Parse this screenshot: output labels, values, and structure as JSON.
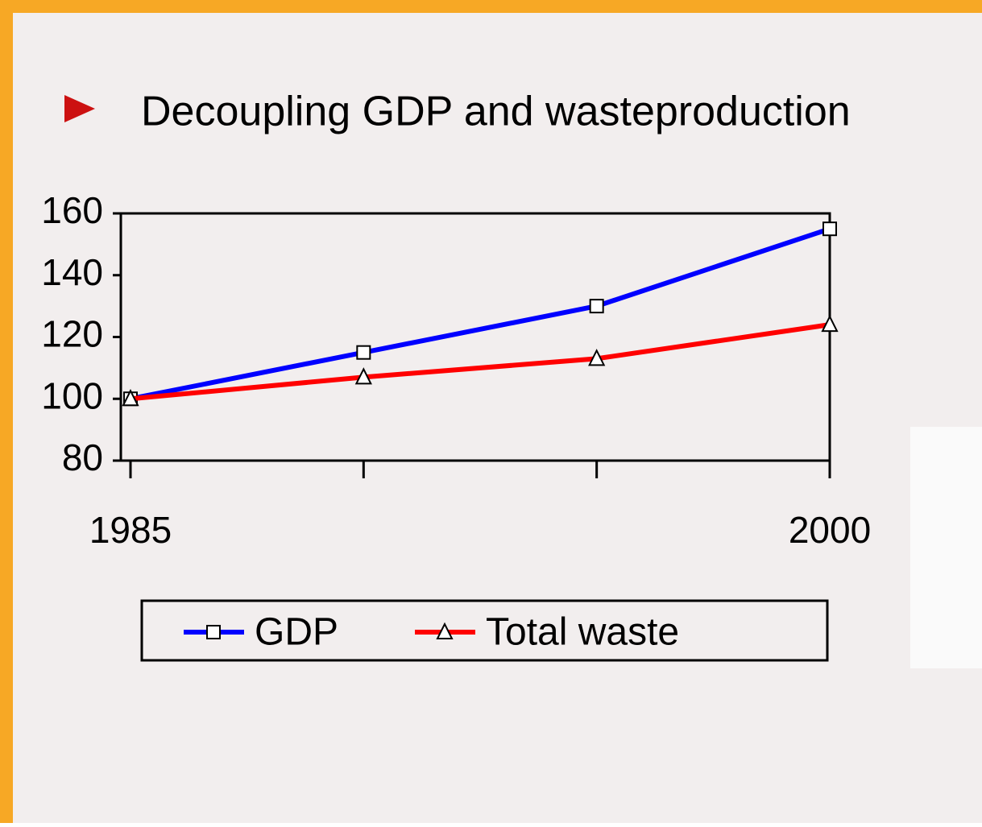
{
  "chart_data": {
    "type": "line",
    "title": "Decoupling GDP and wasteproduction",
    "categories": [
      "1985",
      null,
      null,
      "2000"
    ],
    "series": [
      {
        "name": "GDP",
        "color": "#0000ff",
        "marker": "square",
        "values": [
          100,
          115,
          130,
          155
        ]
      },
      {
        "name": "Total waste",
        "color": "#ff0000",
        "marker": "triangle",
        "values": [
          100,
          107,
          113,
          124
        ]
      }
    ],
    "ylim": [
      80,
      160
    ],
    "yticks": [
      80,
      100,
      120,
      140,
      160
    ]
  }
}
